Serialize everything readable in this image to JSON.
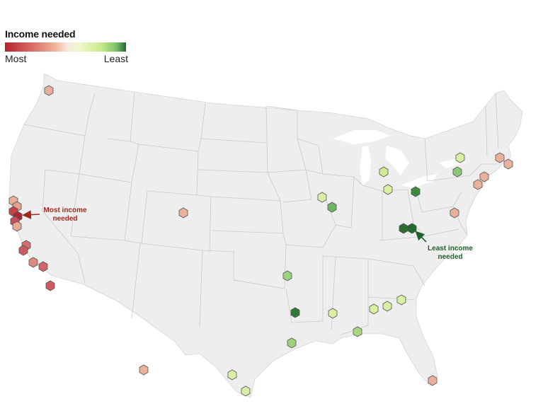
{
  "legend": {
    "title": "Income needed",
    "low_label": "Most",
    "high_label": "Least",
    "colors": [
      "#b5232f",
      "#f0b79b",
      "#f7eadf",
      "#c6ea8a",
      "#1f6b2d"
    ]
  },
  "annotations": {
    "most": "Most income needed",
    "least": "Least income needed"
  },
  "colors": {
    "land": "#eeeeee",
    "state_border": "#c9c9c9",
    "hex_stroke": "#555555"
  }
}
